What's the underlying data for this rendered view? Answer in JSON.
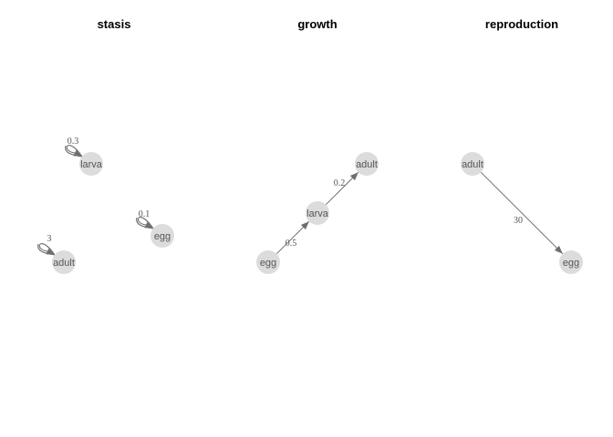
{
  "colors": {
    "node_fill": "#dcdcdc",
    "edge": "#6e6e6e",
    "node_text": "#555555",
    "title_text": "#000000"
  },
  "panels": [
    {
      "id": "stasis",
      "title": "stasis",
      "nodes": [
        {
          "id": "larva",
          "label": "larva"
        },
        {
          "id": "egg",
          "label": "egg"
        },
        {
          "id": "adult",
          "label": "adult"
        }
      ],
      "edges": [
        {
          "from": "larva",
          "to": "larva",
          "label": "0.3"
        },
        {
          "from": "egg",
          "to": "egg",
          "label": "0.1"
        },
        {
          "from": "adult",
          "to": "adult",
          "label": "3"
        }
      ]
    },
    {
      "id": "growth",
      "title": "growth",
      "nodes": [
        {
          "id": "adult",
          "label": "adult"
        },
        {
          "id": "larva",
          "label": "larva"
        },
        {
          "id": "egg",
          "label": "egg"
        }
      ],
      "edges": [
        {
          "from": "egg",
          "to": "larva",
          "label": "0.5"
        },
        {
          "from": "larva",
          "to": "adult",
          "label": "0.2"
        }
      ]
    },
    {
      "id": "reproduction",
      "title": "reproduction",
      "nodes": [
        {
          "id": "adult",
          "label": "adult"
        },
        {
          "id": "egg",
          "label": "egg"
        }
      ],
      "edges": [
        {
          "from": "adult",
          "to": "egg",
          "label": "30"
        }
      ]
    }
  ]
}
